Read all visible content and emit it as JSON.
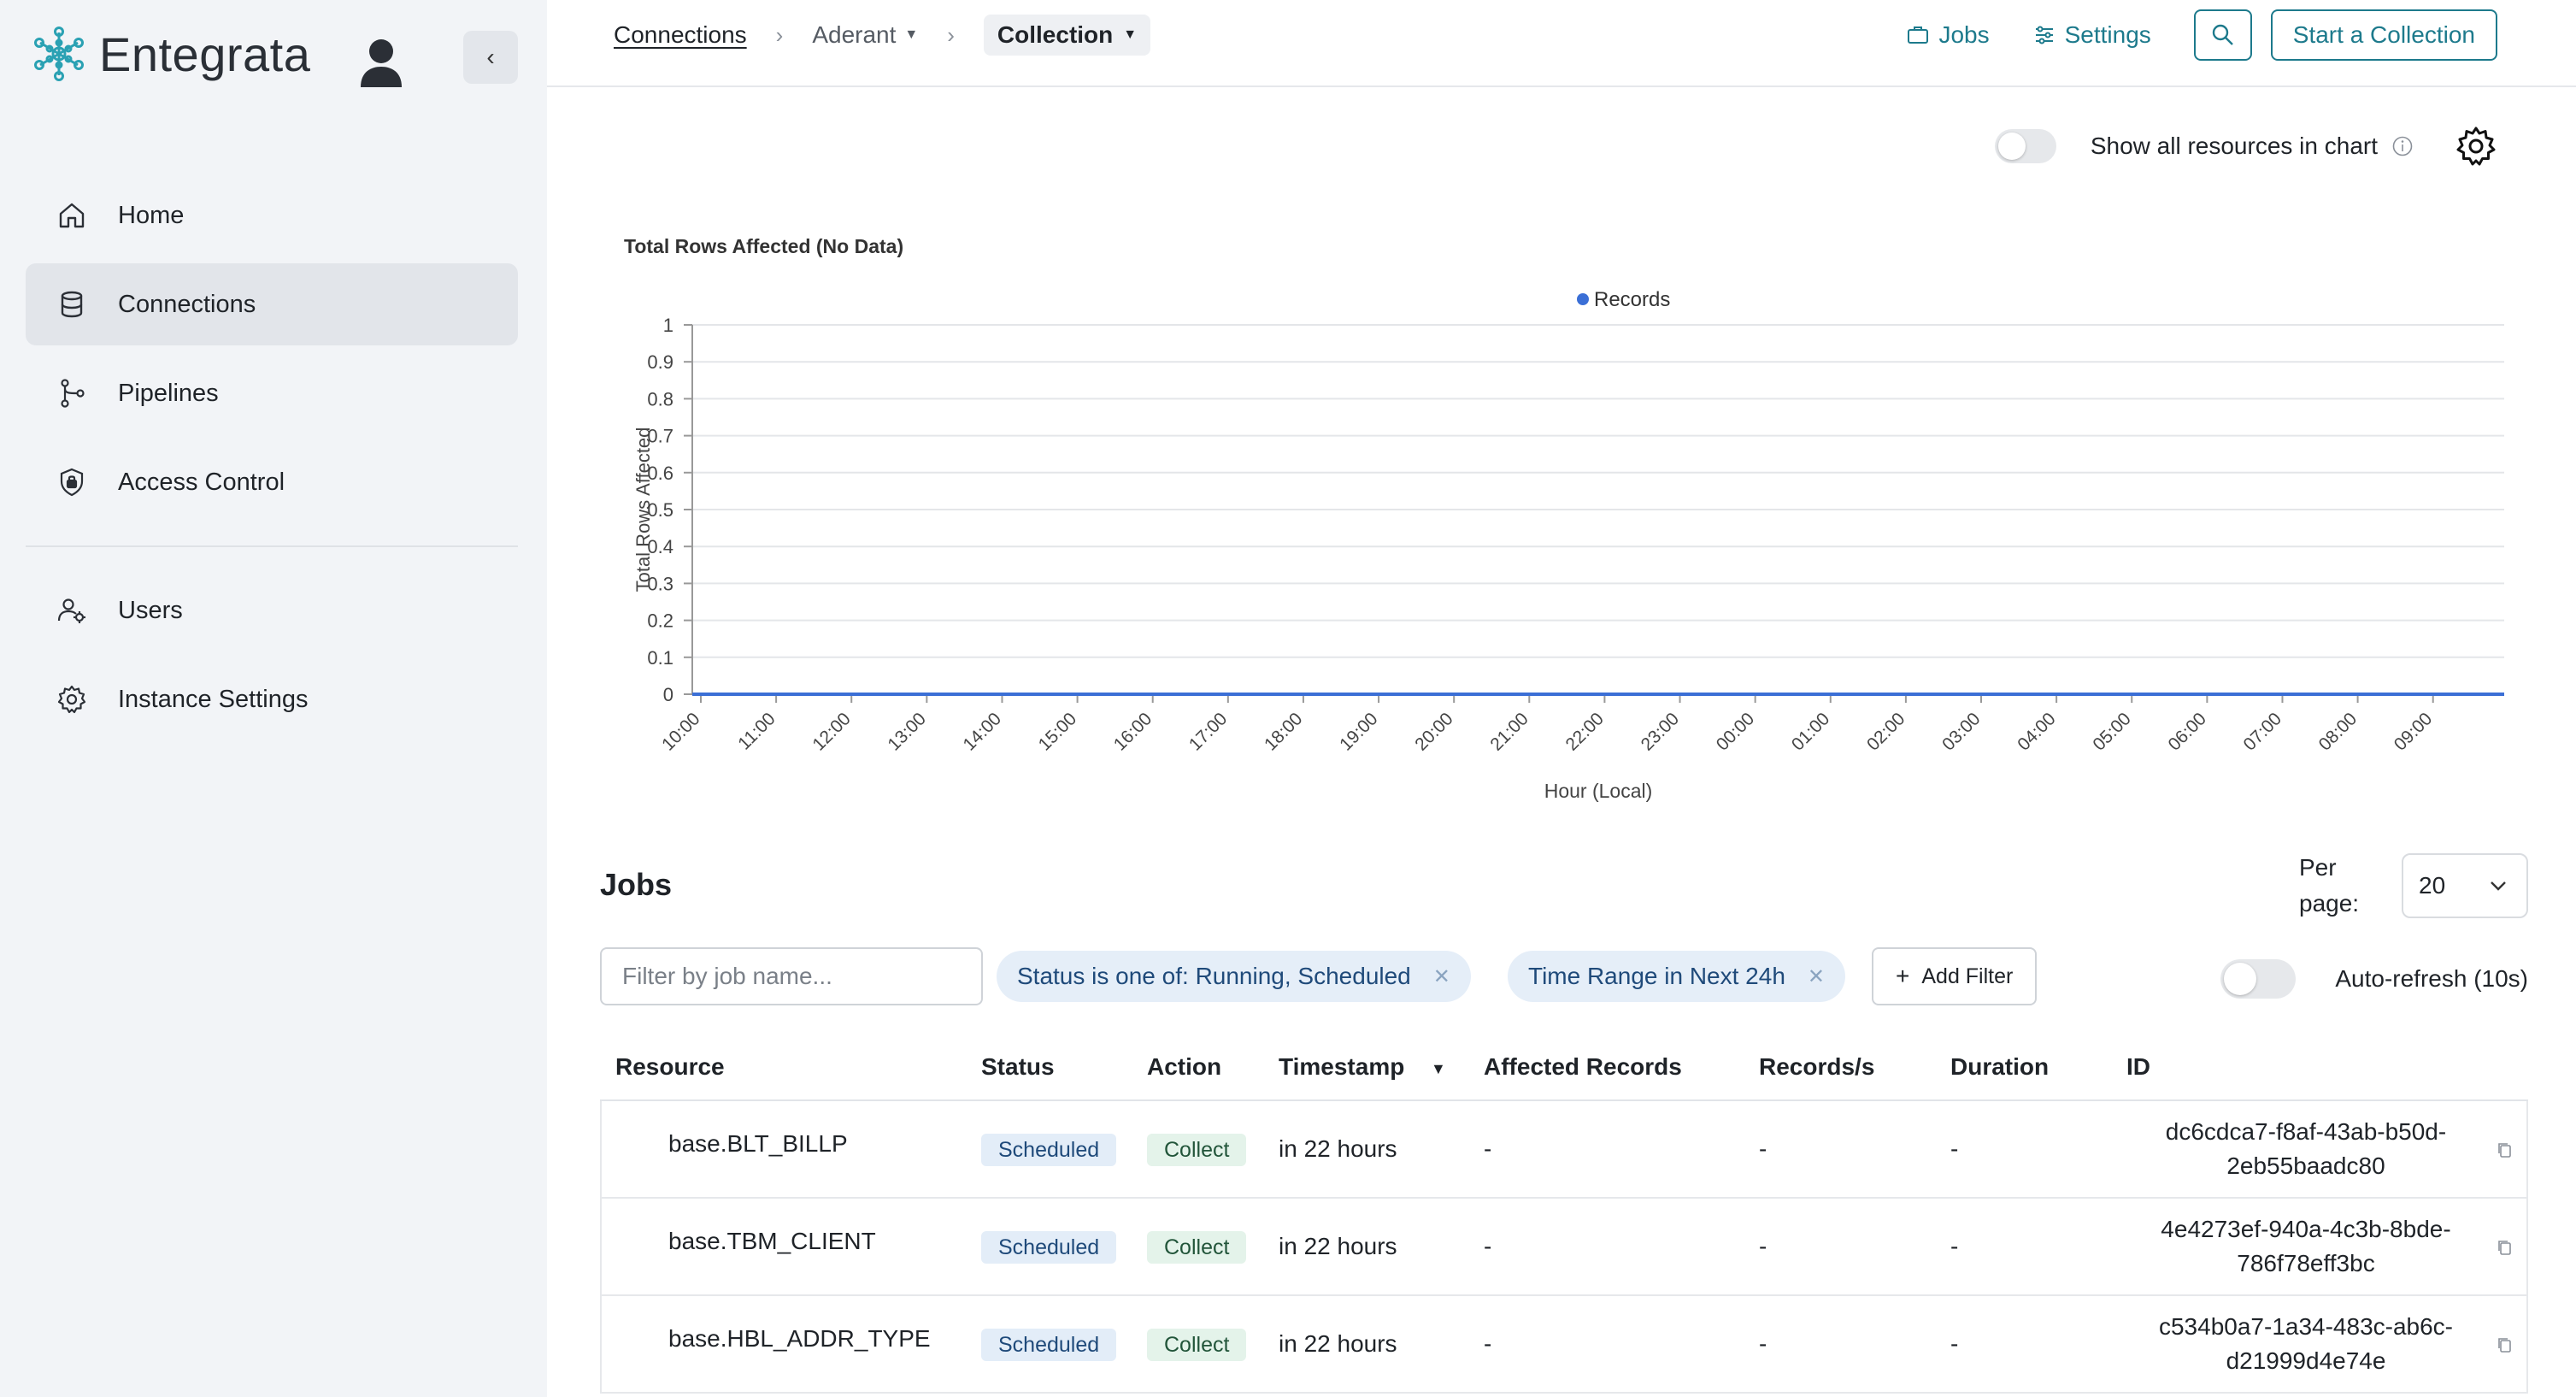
{
  "brand": {
    "name": "Entegrata"
  },
  "sidebar": {
    "collapse_label": "‹",
    "items": [
      {
        "label": "Home",
        "icon": "home-icon"
      },
      {
        "label": "Connections",
        "icon": "database-icon",
        "active": true
      },
      {
        "label": "Pipelines",
        "icon": "pipeline-icon"
      },
      {
        "label": "Access Control",
        "icon": "shield-lock-icon"
      },
      {
        "label": "Users",
        "icon": "users-icon"
      },
      {
        "label": "Instance Settings",
        "icon": "gear-icon"
      }
    ]
  },
  "breadcrumb": {
    "root": "Connections",
    "middle": "Aderant",
    "current": "Collection"
  },
  "topbar": {
    "jobs_label": "Jobs",
    "settings_label": "Settings",
    "start_label": "Start a Collection"
  },
  "chart_controls": {
    "show_all_label": "Show all resources in chart",
    "show_all_on": false
  },
  "colors": {
    "accent": "#1d7a8c",
    "series": "#3b6fd6",
    "status_badge_bg": "#e3edf8",
    "action_badge_bg": "#e4f3ea"
  },
  "chart_data": {
    "type": "line",
    "title": "Total Rows Affected (No Data)",
    "xlabel": "Hour (Local)",
    "ylabel": "Total Rows Affected",
    "ylim": [
      0,
      1
    ],
    "yticks": [
      "0",
      "0.1",
      "0.2",
      "0.3",
      "0.4",
      "0.5",
      "0.6",
      "0.7",
      "0.8",
      "0.9",
      "1"
    ],
    "x": [
      "10:00",
      "11:00",
      "12:00",
      "13:00",
      "14:00",
      "15:00",
      "16:00",
      "17:00",
      "18:00",
      "19:00",
      "20:00",
      "21:00",
      "22:00",
      "23:00",
      "00:00",
      "01:00",
      "02:00",
      "03:00",
      "04:00",
      "05:00",
      "06:00",
      "07:00",
      "08:00",
      "09:00"
    ],
    "series": [
      {
        "name": "Records",
        "values": [
          0,
          0,
          0,
          0,
          0,
          0,
          0,
          0,
          0,
          0,
          0,
          0,
          0,
          0,
          0,
          0,
          0,
          0,
          0,
          0,
          0,
          0,
          0,
          0
        ]
      }
    ],
    "legend": "top-center",
    "grid": true
  },
  "jobs": {
    "title": "Jobs",
    "per_page_label": "Per page:",
    "per_page_value": "20",
    "filter_placeholder": "Filter by job name...",
    "filter_value": "",
    "chips": [
      {
        "label": "Status is one of: Running, Scheduled"
      },
      {
        "label": "Time Range in Next 24h"
      }
    ],
    "add_filter_label": "Add Filter",
    "auto_refresh_label": "Auto-refresh (10s)",
    "columns": [
      "Resource",
      "Status",
      "Action",
      "Timestamp",
      "Affected Records",
      "Records/s",
      "Duration",
      "ID"
    ],
    "rows": [
      {
        "resource": "base.BLT_BILLP",
        "status": "Scheduled",
        "action": "Collect",
        "timestamp": "in 22 hours",
        "affected": "-",
        "rps": "-",
        "duration": "-",
        "id_line1": "dc6cdca7-f8af-43ab-b50d-",
        "id_line2": "2eb55baadc80"
      },
      {
        "resource": "base.TBM_CLIENT",
        "status": "Scheduled",
        "action": "Collect",
        "timestamp": "in 22 hours",
        "affected": "-",
        "rps": "-",
        "duration": "-",
        "id_line1": "4e4273ef-940a-4c3b-8bde-",
        "id_line2": "786f78eff3bc"
      },
      {
        "resource": "base.HBL_ADDR_TYPE",
        "status": "Scheduled",
        "action": "Collect",
        "timestamp": "in 22 hours",
        "affected": "-",
        "rps": "-",
        "duration": "-",
        "id_line1": "c534b0a7-1a34-483c-ab6c-",
        "id_line2": "d21999d4e74e"
      }
    ]
  }
}
